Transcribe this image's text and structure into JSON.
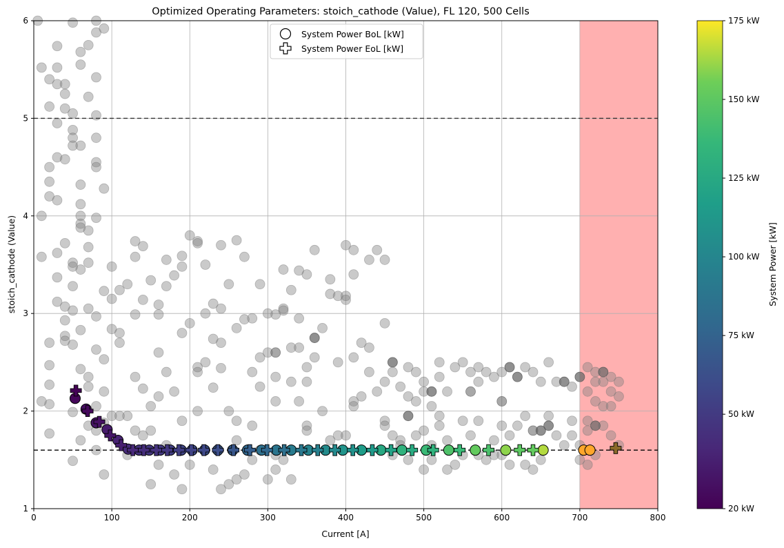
{
  "chart_data": {
    "type": "scatter",
    "title": "Optimized Operating Parameters: stoich_cathode (Value), FL 120, 500 Cells",
    "xlabel": "Current [A]",
    "ylabel": "stoich_cathode (Value)",
    "xlim": [
      0,
      800
    ],
    "ylim": [
      1,
      6
    ],
    "x_ticks": [
      0,
      100,
      200,
      300,
      400,
      500,
      600,
      700,
      800
    ],
    "y_ticks": [
      1,
      2,
      3,
      4,
      5,
      6
    ],
    "grid": true,
    "legend_position": "top-center",
    "legend": [
      {
        "name": "System Power BoL [kW]",
        "marker": "circle"
      },
      {
        "name": "System Power EoL [kW]",
        "marker": "plus"
      }
    ],
    "hlines": [
      {
        "y": 5.0,
        "style": "dashed",
        "color": "#333333"
      },
      {
        "y": 1.6,
        "style": "dashed",
        "color": "#000000"
      }
    ],
    "shaded_region": {
      "x_from": 700,
      "x_to": 800,
      "color": "#ffb0b0"
    },
    "colorbar": {
      "label": "System Power [kW]",
      "min": 20,
      "max": 175,
      "colormap": "viridis",
      "tick_values": [
        20,
        50,
        75,
        100,
        125,
        150,
        175
      ],
      "tick_labels": [
        "20 kW",
        "50 kW",
        "75 kW",
        "100 kW",
        "125 kW",
        "150 kW",
        "175 kW"
      ]
    },
    "explored_points": [
      [
        5,
        6.0
      ],
      [
        10,
        5.52
      ],
      [
        20,
        5.4
      ],
      [
        20,
        5.12
      ],
      [
        30,
        5.52
      ],
      [
        30,
        5.35
      ],
      [
        40,
        5.35
      ],
      [
        40,
        5.25
      ],
      [
        40,
        5.1
      ],
      [
        50,
        5.05
      ],
      [
        30,
        4.95
      ],
      [
        50,
        4.88
      ],
      [
        50,
        4.8
      ],
      [
        50,
        4.72
      ],
      [
        60,
        4.72
      ],
      [
        30,
        4.6
      ],
      [
        40,
        4.58
      ],
      [
        20,
        4.5
      ],
      [
        20,
        4.35
      ],
      [
        20,
        4.2
      ],
      [
        30,
        4.16
      ],
      [
        10,
        4.0
      ],
      [
        60,
        4.32
      ],
      [
        60,
        4.12
      ],
      [
        60,
        4.0
      ],
      [
        60,
        3.92
      ],
      [
        60,
        3.88
      ],
      [
        70,
        3.85
      ],
      [
        80,
        4.55
      ],
      [
        80,
        4.5
      ],
      [
        80,
        3.98
      ],
      [
        80,
        5.03
      ],
      [
        80,
        5.42
      ],
      [
        80,
        5.88
      ],
      [
        90,
        5.92
      ],
      [
        80,
        6.0
      ],
      [
        60,
        5.55
      ],
      [
        60,
        5.68
      ],
      [
        70,
        5.75
      ],
      [
        70,
        5.22
      ],
      [
        50,
        5.98
      ],
      [
        30,
        5.74
      ],
      [
        90,
        4.28
      ],
      [
        80,
        4.8
      ],
      [
        10,
        3.58
      ],
      [
        30,
        3.62
      ],
      [
        30,
        3.37
      ],
      [
        40,
        3.72
      ],
      [
        50,
        3.52
      ],
      [
        50,
        3.48
      ],
      [
        50,
        3.28
      ],
      [
        70,
        3.68
      ],
      [
        70,
        3.52
      ],
      [
        60,
        3.45
      ],
      [
        30,
        3.12
      ],
      [
        40,
        3.07
      ],
      [
        50,
        3.03
      ],
      [
        40,
        2.93
      ],
      [
        40,
        2.77
      ],
      [
        40,
        2.72
      ],
      [
        20,
        2.7
      ],
      [
        50,
        2.68
      ],
      [
        60,
        2.83
      ],
      [
        70,
        3.05
      ],
      [
        80,
        2.97
      ],
      [
        80,
        2.63
      ],
      [
        90,
        3.23
      ],
      [
        90,
        2.53
      ],
      [
        100,
        3.48
      ],
      [
        100,
        3.15
      ],
      [
        100,
        2.84
      ],
      [
        110,
        3.24
      ],
      [
        110,
        2.8
      ],
      [
        110,
        2.7
      ],
      [
        120,
        3.3
      ],
      [
        130,
        3.74
      ],
      [
        130,
        3.58
      ],
      [
        140,
        3.69
      ],
      [
        150,
        3.34
      ],
      [
        130,
        2.99
      ],
      [
        140,
        3.14
      ],
      [
        160,
        3.09
      ],
      [
        160,
        2.99
      ],
      [
        170,
        3.55
      ],
      [
        170,
        3.28
      ],
      [
        180,
        3.39
      ],
      [
        190,
        3.59
      ],
      [
        190,
        3.48
      ],
      [
        200,
        3.8
      ],
      [
        210,
        3.74
      ],
      [
        210,
        3.72
      ],
      [
        220,
        3.5
      ],
      [
        240,
        3.7
      ],
      [
        250,
        3.3
      ],
      [
        260,
        3.75
      ],
      [
        270,
        3.58
      ],
      [
        290,
        3.3
      ],
      [
        320,
        3.45
      ],
      [
        340,
        3.44
      ],
      [
        350,
        3.4
      ],
      [
        360,
        3.65
      ],
      [
        400,
        3.7
      ],
      [
        410,
        3.65
      ],
      [
        410,
        3.4
      ],
      [
        430,
        3.55
      ],
      [
        440,
        3.65
      ],
      [
        450,
        3.55
      ],
      [
        380,
        3.35
      ],
      [
        380,
        3.2
      ],
      [
        390,
        3.18
      ],
      [
        400,
        3.18
      ],
      [
        400,
        3.14
      ],
      [
        330,
        3.24
      ],
      [
        320,
        3.05
      ],
      [
        320,
        3.03
      ],
      [
        300,
        3.0
      ],
      [
        310,
        2.99
      ],
      [
        280,
        2.95
      ],
      [
        270,
        2.94
      ],
      [
        260,
        2.85
      ],
      [
        240,
        3.05
      ],
      [
        230,
        3.1
      ],
      [
        220,
        3.0
      ],
      [
        200,
        2.9
      ],
      [
        190,
        2.8
      ],
      [
        230,
        2.74
      ],
      [
        240,
        2.7
      ],
      [
        160,
        2.6
      ],
      [
        170,
        2.4
      ],
      [
        130,
        2.35
      ],
      [
        140,
        2.23
      ],
      [
        160,
        2.15
      ],
      [
        180,
        2.2
      ],
      [
        150,
        2.05
      ],
      [
        120,
        1.95
      ],
      [
        110,
        1.95
      ],
      [
        100,
        1.95
      ],
      [
        90,
        2.2
      ],
      [
        70,
        2.35
      ],
      [
        70,
        2.25
      ],
      [
        60,
        2.43
      ],
      [
        20,
        2.47
      ],
      [
        20,
        2.27
      ],
      [
        20,
        2.07
      ],
      [
        10,
        2.1
      ],
      [
        50,
        1.99
      ],
      [
        80,
        2.05
      ],
      [
        90,
        1.88
      ],
      [
        80,
        1.8
      ],
      [
        60,
        1.7
      ],
      [
        70,
        1.85
      ],
      [
        20,
        1.77
      ],
      [
        50,
        1.49
      ],
      [
        80,
        1.6
      ],
      [
        90,
        1.35
      ],
      [
        120,
        1.55
      ],
      [
        150,
        1.25
      ],
      [
        140,
        1.75
      ],
      [
        130,
        1.8
      ],
      [
        150,
        1.8
      ],
      [
        160,
        1.45
      ],
      [
        170,
        1.65
      ],
      [
        180,
        1.35
      ],
      [
        190,
        1.2
      ],
      [
        190,
        1.9
      ],
      [
        200,
        1.45
      ],
      [
        210,
        2.0
      ],
      [
        210,
        2.4
      ],
      [
        210,
        2.45
      ],
      [
        220,
        2.5
      ],
      [
        230,
        2.24
      ],
      [
        240,
        2.44
      ],
      [
        250,
        2.0
      ],
      [
        250,
        1.25
      ],
      [
        230,
        1.4
      ],
      [
        240,
        1.2
      ],
      [
        260,
        1.3
      ],
      [
        260,
        1.7
      ],
      [
        260,
        1.9
      ],
      [
        280,
        1.85
      ],
      [
        270,
        1.35
      ],
      [
        280,
        1.5
      ],
      [
        290,
        1.6
      ],
      [
        300,
        1.3
      ],
      [
        310,
        1.4
      ],
      [
        310,
        1.55
      ],
      [
        320,
        1.5
      ],
      [
        330,
        1.3
      ],
      [
        280,
        2.4
      ],
      [
        290,
        2.55
      ],
      [
        290,
        2.25
      ],
      [
        300,
        2.6
      ],
      [
        310,
        2.35
      ],
      [
        310,
        2.1
      ],
      [
        330,
        2.3
      ],
      [
        330,
        2.65
      ],
      [
        340,
        2.65
      ],
      [
        340,
        2.1
      ],
      [
        340,
        2.95
      ],
      [
        350,
        2.45
      ],
      [
        350,
        2.3
      ],
      [
        350,
        1.85
      ],
      [
        350,
        1.8
      ],
      [
        360,
        2.75
      ],
      [
        360,
        2.55
      ],
      [
        370,
        2.85
      ],
      [
        370,
        2.0
      ],
      [
        380,
        1.7
      ],
      [
        390,
        1.75
      ],
      [
        400,
        1.75
      ],
      [
        390,
        2.5
      ],
      [
        410,
        2.55
      ],
      [
        410,
        2.1
      ],
      [
        410,
        2.05
      ],
      [
        420,
        2.7
      ],
      [
        420,
        2.15
      ],
      [
        430,
        2.65
      ],
      [
        430,
        2.4
      ],
      [
        440,
        2.2
      ],
      [
        450,
        2.3
      ],
      [
        450,
        2.9
      ],
      [
        460,
        2.5
      ],
      [
        460,
        2.4
      ],
      [
        470,
        2.25
      ],
      [
        480,
        2.45
      ],
      [
        480,
        2.15
      ],
      [
        490,
        2.4
      ],
      [
        490,
        2.1
      ],
      [
        500,
        2.3
      ],
      [
        500,
        2.2
      ],
      [
        510,
        2.2
      ],
      [
        510,
        2.05
      ],
      [
        520,
        2.5
      ],
      [
        520,
        2.35
      ],
      [
        530,
        2.2
      ],
      [
        540,
        2.45
      ],
      [
        550,
        2.5
      ],
      [
        560,
        2.4
      ],
      [
        570,
        2.45
      ],
      [
        570,
        2.3
      ],
      [
        580,
        2.4
      ],
      [
        590,
        2.35
      ],
      [
        600,
        2.4
      ],
      [
        610,
        2.45
      ],
      [
        620,
        2.35
      ],
      [
        630,
        2.45
      ],
      [
        640,
        2.4
      ],
      [
        650,
        2.3
      ],
      [
        660,
        2.5
      ],
      [
        670,
        2.3
      ],
      [
        680,
        2.3
      ],
      [
        690,
        2.25
      ],
      [
        700,
        2.35
      ],
      [
        710,
        2.45
      ],
      [
        720,
        2.4
      ],
      [
        730,
        2.4
      ],
      [
        740,
        2.35
      ],
      [
        750,
        2.3
      ],
      [
        450,
        1.9
      ],
      [
        450,
        1.85
      ],
      [
        460,
        1.75
      ],
      [
        460,
        1.55
      ],
      [
        470,
        1.7
      ],
      [
        470,
        1.65
      ],
      [
        480,
        1.95
      ],
      [
        480,
        1.5
      ],
      [
        490,
        1.75
      ],
      [
        500,
        1.8
      ],
      [
        500,
        1.4
      ],
      [
        510,
        1.65
      ],
      [
        510,
        1.5
      ],
      [
        520,
        1.85
      ],
      [
        520,
        1.95
      ],
      [
        530,
        1.4
      ],
      [
        530,
        1.7
      ],
      [
        540,
        1.45
      ],
      [
        550,
        1.55
      ],
      [
        550,
        1.9
      ],
      [
        560,
        1.75
      ],
      [
        570,
        1.9
      ],
      [
        570,
        1.55
      ],
      [
        580,
        1.5
      ],
      [
        590,
        1.55
      ],
      [
        590,
        1.7
      ],
      [
        600,
        1.85
      ],
      [
        600,
        1.55
      ],
      [
        610,
        1.45
      ],
      [
        610,
        1.75
      ],
      [
        620,
        1.85
      ],
      [
        630,
        1.45
      ],
      [
        630,
        1.95
      ],
      [
        640,
        1.4
      ],
      [
        650,
        1.8
      ],
      [
        650,
        1.5
      ],
      [
        660,
        1.85
      ],
      [
        660,
        1.95
      ],
      [
        670,
        1.75
      ],
      [
        680,
        1.65
      ],
      [
        690,
        1.75
      ],
      [
        690,
        1.9
      ],
      [
        700,
        1.65
      ],
      [
        700,
        1.5
      ],
      [
        710,
        1.9
      ],
      [
        710,
        1.8
      ],
      [
        710,
        1.45
      ],
      [
        720,
        1.85
      ],
      [
        720,
        1.55
      ],
      [
        730,
        1.85
      ],
      [
        740,
        1.75
      ],
      [
        750,
        1.65
      ],
      [
        720,
        2.1
      ],
      [
        730,
        2.05
      ],
      [
        740,
        2.05
      ],
      [
        740,
        2.2
      ],
      [
        750,
        2.15
      ],
      [
        710,
        2.2
      ],
      [
        720,
        2.3
      ],
      [
        730,
        2.3
      ]
    ],
    "explored_points_dark": [
      [
        310,
        2.6
      ],
      [
        360,
        2.75
      ],
      [
        460,
        2.5
      ],
      [
        480,
        1.95
      ],
      [
        510,
        2.2
      ],
      [
        560,
        2.2
      ],
      [
        600,
        2.1
      ],
      [
        610,
        2.45
      ],
      [
        620,
        2.35
      ],
      [
        640,
        1.8
      ],
      [
        650,
        1.8
      ],
      [
        660,
        1.85
      ],
      [
        680,
        2.3
      ],
      [
        700,
        2.35
      ],
      [
        730,
        2.4
      ],
      [
        720,
        1.85
      ]
    ],
    "bol_points": [
      [
        53,
        2.13
      ],
      [
        67,
        2.02
      ],
      [
        80,
        1.88
      ],
      [
        94,
        1.81
      ],
      [
        108,
        1.7
      ],
      [
        121,
        1.61
      ],
      [
        135,
        1.6
      ],
      [
        148,
        1.6
      ],
      [
        162,
        1.6
      ],
      [
        175,
        1.6
      ],
      [
        189,
        1.6
      ],
      [
        203,
        1.6
      ],
      [
        219,
        1.6
      ],
      [
        236,
        1.6
      ],
      [
        255,
        1.6
      ],
      [
        274,
        1.6
      ],
      [
        292,
        1.6
      ],
      [
        311,
        1.6
      ],
      [
        330,
        1.6
      ],
      [
        352,
        1.6
      ],
      [
        374,
        1.6
      ],
      [
        396,
        1.6
      ],
      [
        420,
        1.6
      ],
      [
        445,
        1.6
      ],
      [
        472,
        1.6
      ],
      [
        503,
        1.6
      ],
      [
        532,
        1.6
      ],
      [
        566,
        1.6
      ],
      [
        605,
        1.6
      ],
      [
        653,
        1.6
      ],
      [
        705,
        1.6
      ],
      [
        713,
        1.6
      ]
    ],
    "bol_power_kw": [
      23,
      27,
      29,
      33,
      37,
      41,
      45,
      48,
      50,
      53,
      56,
      60,
      63,
      68,
      72,
      78,
      84,
      88,
      92,
      98,
      104,
      110,
      116,
      125,
      132,
      138,
      145,
      152,
      160,
      165,
      170,
      168
    ],
    "eol_points": [
      [
        54,
        2.21
      ],
      [
        69,
        2.0
      ],
      [
        84,
        1.89
      ],
      [
        98,
        1.75
      ],
      [
        112,
        1.65
      ],
      [
        127,
        1.6
      ],
      [
        141,
        1.6
      ],
      [
        157,
        1.6
      ],
      [
        171,
        1.6
      ],
      [
        186,
        1.6
      ],
      [
        202,
        1.6
      ],
      [
        218,
        1.6
      ],
      [
        236,
        1.6
      ],
      [
        256,
        1.6
      ],
      [
        277,
        1.6
      ],
      [
        299,
        1.6
      ],
      [
        321,
        1.6
      ],
      [
        343,
        1.6
      ],
      [
        364,
        1.6
      ],
      [
        386,
        1.6
      ],
      [
        409,
        1.6
      ],
      [
        434,
        1.6
      ],
      [
        458,
        1.6
      ],
      [
        485,
        1.6
      ],
      [
        512,
        1.6
      ],
      [
        546,
        1.6
      ],
      [
        583,
        1.6
      ],
      [
        623,
        1.6
      ],
      [
        640,
        1.6
      ],
      [
        746,
        1.62
      ]
    ],
    "eol_power_kw": [
      21,
      24,
      28,
      31,
      35,
      40,
      43,
      46,
      49,
      52,
      55,
      58,
      62,
      67,
      72,
      78,
      84,
      90,
      96,
      102,
      108,
      114,
      120,
      126,
      132,
      138,
      144,
      150,
      152,
      170
    ]
  }
}
